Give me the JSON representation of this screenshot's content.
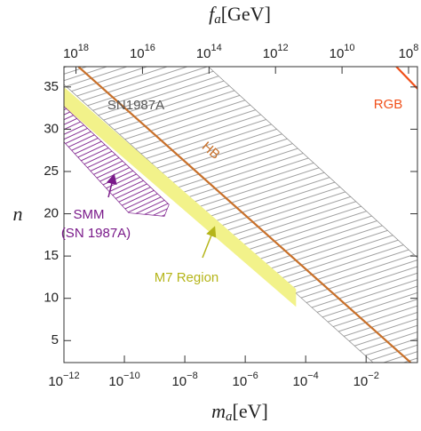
{
  "chart_data": {
    "type": "region",
    "xlabel": {
      "symbol": "m",
      "sub": "a",
      "unit": "[eV]"
    },
    "x2label": {
      "symbol": "f",
      "sub": "a",
      "unit": "[GeV]"
    },
    "ylabel": "n",
    "xscale": "log",
    "x2scale": "log",
    "xlim": [
      1e-12,
      0.5
    ],
    "x2lim": [
      2.3e+18,
      54000000.0
    ],
    "ylim": [
      2.4,
      37.4
    ],
    "xticks": [
      {
        "value": 1e-12,
        "label": "10−12"
      },
      {
        "value": 1e-10,
        "label": "10−10"
      },
      {
        "value": 1e-08,
        "label": "10−8"
      },
      {
        "value": 1e-06,
        "label": "10−6"
      },
      {
        "value": 0.0001,
        "label": "10−4"
      },
      {
        "value": 0.01,
        "label": "10−2"
      }
    ],
    "x2ticks": [
      {
        "value": 1e+18,
        "label": "1018"
      },
      {
        "value": 1e+16,
        "label": "1016"
      },
      {
        "value": 100000000000000.0,
        "label": "1014"
      },
      {
        "value": 1000000000000.0,
        "label": "1012"
      },
      {
        "value": 10000000000.0,
        "label": "1010"
      },
      {
        "value": 100000000.0,
        "label": "108"
      }
    ],
    "yticks": [
      5,
      10,
      15,
      20,
      25,
      30,
      35
    ],
    "series": [
      {
        "name": "SN1987A",
        "kind": "hatch",
        "color": "#8a8a8a",
        "x": [
          1e-12,
          6e-08,
          0.5,
          0.5,
          0.017,
          1e-12
        ],
        "values": [
          37.4,
          37.4,
          14.8,
          2.4,
          2.4,
          35.3
        ]
      },
      {
        "name": "M7 Region",
        "kind": "fill",
        "color": "#f2f28a",
        "label_color": "#b5b51a",
        "x": [
          1e-12,
          4.8e-05,
          4.8e-05,
          1e-12
        ],
        "values": [
          35,
          11.1,
          9.0,
          32.7
        ]
      },
      {
        "name": "SMM",
        "note": "(SN 1987A)",
        "kind": "hatch",
        "color": "#7a1a8a",
        "x": [
          1e-12,
          3e-09,
          2.1e-09,
          1.4e-10,
          1e-12
        ],
        "values": [
          32.7,
          21.1,
          19.7,
          20.1,
          28.5
        ]
      },
      {
        "name": "HB",
        "kind": "line",
        "color": "#c8702a",
        "x": [
          3e-12,
          0.3
        ],
        "values": [
          37.4,
          2.4
        ]
      },
      {
        "name": "RGB",
        "kind": "line",
        "color": "#f0501a",
        "x": [
          0.1,
          0.5
        ],
        "values": [
          37.4,
          34.8
        ]
      }
    ]
  }
}
